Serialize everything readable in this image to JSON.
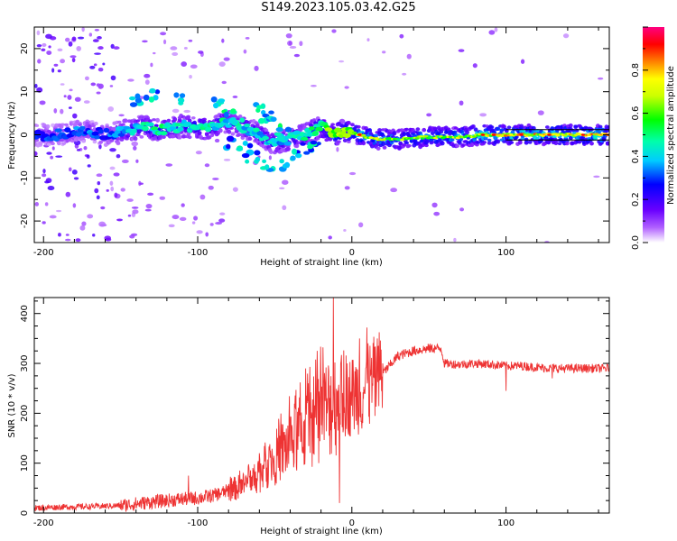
{
  "title": "S149.2023.105.03.42.G25",
  "chart_data": [
    {
      "type": "heatmap",
      "xlabel": "Height of straight line (km)",
      "ylabel": "Frequency (Hz)",
      "xlim": [
        -206,
        167
      ],
      "ylim": [
        -25,
        25
      ],
      "xticks": [
        -200,
        -100,
        0,
        100
      ],
      "yticks": [
        -20,
        -10,
        0,
        10,
        20
      ],
      "colorbar": {
        "label": "Normalized spectral amplitude",
        "range": [
          0,
          1
        ],
        "ticks": [
          "0.0",
          "0.2",
          "0.4",
          "0.6",
          "0.8"
        ],
        "colors": [
          "#ffffff",
          "#8a00ff",
          "#0000ff",
          "#00ffff",
          "#00ff00",
          "#ffff00",
          "#ff8000",
          "#ff0000",
          "#ff0080"
        ]
      },
      "ridge": [
        {
          "x": -190,
          "y": 0,
          "amp": 0.3
        },
        {
          "x": -175,
          "y": 1,
          "amp": 0.35
        },
        {
          "x": -160,
          "y": 0,
          "amp": 0.3
        },
        {
          "x": -150,
          "y": 0.5,
          "amp": 0.4
        },
        {
          "x": -135,
          "y": 2,
          "amp": 0.45
        },
        {
          "x": -125,
          "y": 1,
          "amp": 0.5
        },
        {
          "x": -110,
          "y": 2,
          "amp": 0.45
        },
        {
          "x": -95,
          "y": 1.5,
          "amp": 0.5
        },
        {
          "x": -80,
          "y": 3,
          "amp": 0.45
        },
        {
          "x": -65,
          "y": 1,
          "amp": 0.45
        },
        {
          "x": -50,
          "y": -2,
          "amp": 0.4
        },
        {
          "x": -40,
          "y": -1,
          "amp": 0.45
        },
        {
          "x": -30,
          "y": 0,
          "amp": 0.5
        },
        {
          "x": -20,
          "y": 2,
          "amp": 0.55
        },
        {
          "x": -12,
          "y": 0,
          "amp": 0.7
        },
        {
          "x": -5,
          "y": 1,
          "amp": 0.65
        },
        {
          "x": 0,
          "y": 0.5,
          "amp": 0.6
        },
        {
          "x": 5,
          "y": 0,
          "amp": 0.75
        },
        {
          "x": 15,
          "y": -1,
          "amp": 0.7
        },
        {
          "x": 30,
          "y": -1,
          "amp": 0.65
        },
        {
          "x": 50,
          "y": -0.5,
          "amp": 0.65
        },
        {
          "x": 70,
          "y": -0.5,
          "amp": 0.7
        },
        {
          "x": 85,
          "y": 0,
          "amp": 0.75
        },
        {
          "x": 100,
          "y": 0,
          "amp": 0.8
        },
        {
          "x": 120,
          "y": 0,
          "amp": 0.8
        },
        {
          "x": 140,
          "y": 0,
          "amp": 0.82
        },
        {
          "x": 167,
          "y": 0,
          "amp": 0.85
        }
      ]
    },
    {
      "type": "line",
      "xlabel": "Height of straight line (km)",
      "ylabel": "SNR (10 * v/v)",
      "xlim": [
        -206,
        167
      ],
      "ylim": [
        0,
        432
      ],
      "xticks": [
        -200,
        -100,
        0,
        100
      ],
      "yticks": [
        0,
        100,
        200,
        300,
        400
      ],
      "series_color": "#ee3333",
      "x": [
        -206,
        -190,
        -170,
        -150,
        -130,
        -110,
        -100,
        -90,
        -80,
        -70,
        -60,
        -50,
        -40,
        -30,
        -20,
        -10,
        0,
        10,
        20,
        30,
        40,
        50,
        58,
        60,
        70,
        80,
        90,
        100,
        110,
        120,
        130,
        140,
        150,
        167
      ],
      "y": [
        10,
        12,
        13,
        15,
        22,
        28,
        30,
        35,
        45,
        55,
        80,
        110,
        140,
        170,
        200,
        225,
        235,
        250,
        280,
        315,
        325,
        330,
        330,
        300,
        298,
        300,
        298,
        295,
        295,
        292,
        290,
        290,
        290,
        290
      ],
      "spikes": [
        {
          "x": -106,
          "y": 75
        },
        {
          "x": -100,
          "y": 25
        },
        {
          "x": -60,
          "y": 120
        },
        {
          "x": -40,
          "y": 180
        },
        {
          "x": -30,
          "y": 290
        },
        {
          "x": -22,
          "y": 150
        },
        {
          "x": -12,
          "y": 432
        },
        {
          "x": -8,
          "y": 20
        },
        {
          "x": 5,
          "y": 350
        },
        {
          "x": 10,
          "y": 260
        },
        {
          "x": 20,
          "y": 300
        },
        {
          "x": 100,
          "y": 245
        },
        {
          "x": 130,
          "y": 270
        }
      ]
    }
  ]
}
